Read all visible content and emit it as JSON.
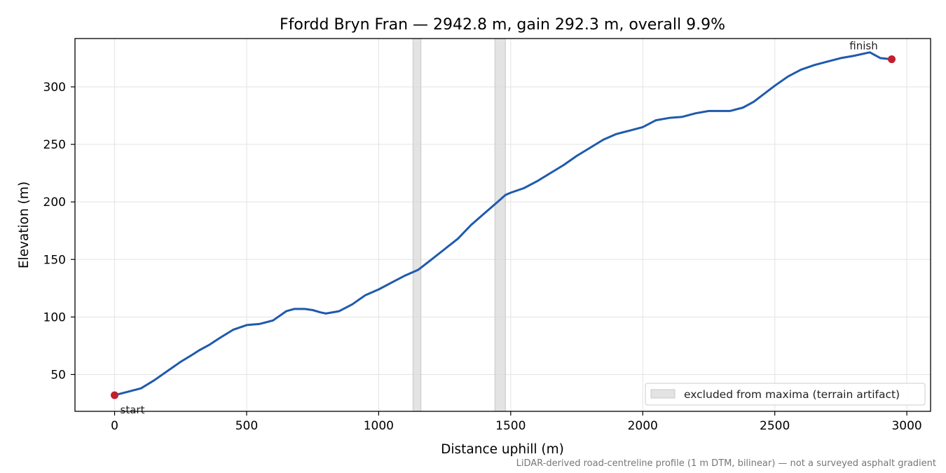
{
  "chart_data": {
    "type": "line",
    "title": "Ffordd Bryn Fran — 2942.8 m, gain 292.3 m, overall 9.9%",
    "xlabel": "Distance uphill (m)",
    "ylabel": "Elevation (m)",
    "xlim": [
      -150,
      3090
    ],
    "ylim": [
      18,
      342
    ],
    "x_ticks": [
      0,
      500,
      1000,
      1500,
      2000,
      2500,
      3000
    ],
    "y_ticks": [
      50,
      100,
      150,
      200,
      250,
      300
    ],
    "grid": true,
    "line_color": "#1f5aad",
    "marker_color": "#c0202e",
    "band_color": "#d9d9d9",
    "series": [
      {
        "x": [
          0,
          50,
          100,
          150,
          200,
          250,
          300,
          320,
          360,
          400,
          450,
          500,
          550,
          600,
          650,
          680,
          720,
          750,
          780,
          800,
          850,
          900,
          950,
          1000,
          1050,
          1100,
          1150,
          1200,
          1250,
          1300,
          1350,
          1400,
          1450,
          1480,
          1500,
          1550,
          1600,
          1650,
          1700,
          1750,
          1800,
          1850,
          1900,
          1950,
          2000,
          2050,
          2100,
          2150,
          2200,
          2250,
          2300,
          2330,
          2380,
          2420,
          2460,
          2500,
          2550,
          2600,
          2650,
          2700,
          2750,
          2800,
          2860,
          2900,
          2942.8
        ],
        "y": [
          32,
          35,
          38,
          45,
          53,
          61,
          68,
          71,
          76,
          82,
          89,
          93,
          94,
          97,
          105,
          107,
          107,
          106,
          104,
          103,
          105,
          111,
          119,
          124,
          130,
          136,
          141,
          150,
          159,
          168,
          180,
          190,
          200,
          206,
          208,
          212,
          218,
          225,
          232,
          240,
          247,
          254,
          259,
          262,
          265,
          271,
          273,
          274,
          277,
          279,
          279,
          279,
          282,
          287,
          294,
          301,
          309,
          315,
          319,
          322,
          325,
          327,
          330,
          325,
          324
        ]
      }
    ],
    "excluded_ranges": [
      [
        1130,
        1160
      ],
      [
        1440,
        1480
      ]
    ],
    "endpoints": [
      {
        "label": "start",
        "x": 0,
        "y": 32
      },
      {
        "label": "finish",
        "x": 2942.8,
        "y": 324
      }
    ],
    "legend": {
      "label": "excluded from maxima (terrain artifact)",
      "placement": "lower right"
    },
    "footnote": "LiDAR-derived road-centreline profile (1 m DTM, bilinear) — not a surveyed asphalt gradient"
  }
}
